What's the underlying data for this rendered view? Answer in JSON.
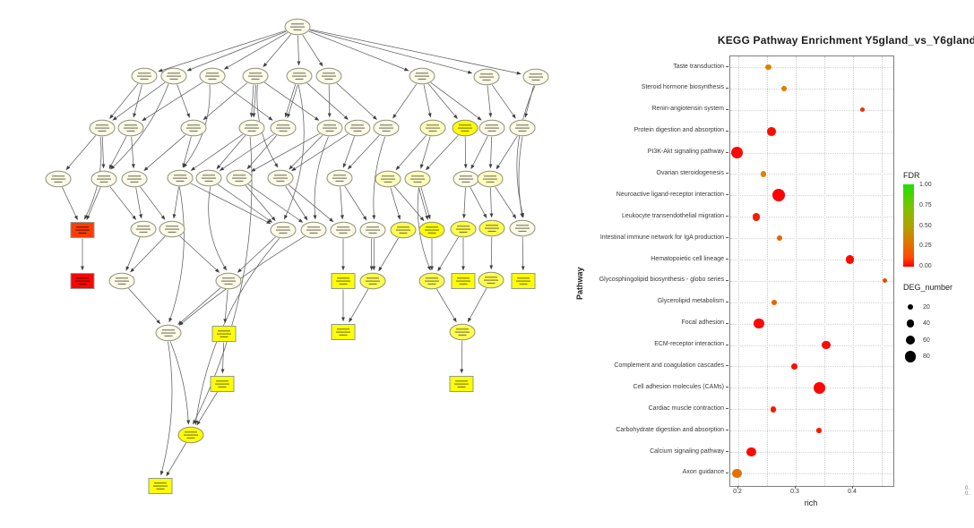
{
  "figure": {
    "left_panel_type": "GO-DAG topology graph",
    "right_panel_type": "KEGG enrichment bubble plot"
  },
  "chart_data": {
    "type": "scatter",
    "title": "KEGG Pathway Enrichment  Y5gland_vs_Y6gland",
    "xlabel": "rich",
    "ylabel": "Pathway",
    "xlim": [
      0.186,
      0.474
    ],
    "x_ticks": [
      0.2,
      0.3,
      0.4
    ],
    "x_minor_ticks": [
      0.25,
      0.35,
      0.45
    ],
    "grid": "dotted",
    "legend_position": "right",
    "points": [
      {
        "pathway": "Taste transduction",
        "rich": 0.253,
        "deg_number": 22,
        "fdr": 0.3
      },
      {
        "pathway": "Steroid hormone biosynthesis",
        "rich": 0.28,
        "deg_number": 12,
        "fdr": 0.28
      },
      {
        "pathway": "Renin-angiotensin system",
        "rich": 0.416,
        "deg_number": 8,
        "fdr": 0.1
      },
      {
        "pathway": "Protein digestion and absorption",
        "rich": 0.258,
        "deg_number": 48,
        "fdr": 0.03
      },
      {
        "pathway": "PI3K-Akt signaling pathway",
        "rich": 0.198,
        "deg_number": 82,
        "fdr": 0.01
      },
      {
        "pathway": "Ovarian steroidogenesis",
        "rich": 0.244,
        "deg_number": 16,
        "fdr": 0.3
      },
      {
        "pathway": "Neuroactive ligand-receptor interaction",
        "rich": 0.27,
        "deg_number": 88,
        "fdr": 0.005
      },
      {
        "pathway": "Leukocyte transendothelial migration",
        "rich": 0.231,
        "deg_number": 38,
        "fdr": 0.06
      },
      {
        "pathway": "Intestinal immune network for IgA production",
        "rich": 0.272,
        "deg_number": 12,
        "fdr": 0.22
      },
      {
        "pathway": "Hematopoietic cell lineage",
        "rich": 0.395,
        "deg_number": 44,
        "fdr": 0.02
      },
      {
        "pathway": "Glycosphingolipid biosynthesis - globo series",
        "rich": 0.455,
        "deg_number": 3,
        "fdr": 0.15
      },
      {
        "pathway": "Glycerolipid metabolism",
        "rich": 0.262,
        "deg_number": 14,
        "fdr": 0.22
      },
      {
        "pathway": "Focal adhesion",
        "rich": 0.236,
        "deg_number": 64,
        "fdr": 0.02
      },
      {
        "pathway": "ECM-receptor interaction",
        "rich": 0.353,
        "deg_number": 48,
        "fdr": 0.02
      },
      {
        "pathway": "Complement and coagulation cascades",
        "rich": 0.298,
        "deg_number": 28,
        "fdr": 0.03
      },
      {
        "pathway": "Cell adhesion molecules (CAMs)",
        "rich": 0.341,
        "deg_number": 76,
        "fdr": 0.01
      },
      {
        "pathway": "Cardiac muscle contraction",
        "rich": 0.261,
        "deg_number": 22,
        "fdr": 0.05
      },
      {
        "pathway": "Carbohydrate digestion and absorption",
        "rich": 0.341,
        "deg_number": 9,
        "fdr": 0.06
      },
      {
        "pathway": "Calcium signaling pathway",
        "rich": 0.223,
        "deg_number": 56,
        "fdr": 0.02
      },
      {
        "pathway": "Axon guidance",
        "rich": 0.198,
        "deg_number": 58,
        "fdr": 0.25
      }
    ]
  },
  "legend": {
    "fdr_title": "FDR",
    "fdr_ticks": [
      "1.00",
      "0.75",
      "0.50",
      "0.25",
      "0.00"
    ],
    "fdr_top_color": "#21df00",
    "fdr_bottom_color": "#ff0000",
    "deg_title": "DEG_number",
    "deg_sizes": [
      "20",
      "40",
      "60",
      "80"
    ]
  },
  "corner_fragment": "0.\n0.",
  "dag": {
    "tones": {
      "c": "#FBFBE8",
      "p": "#FFFFBF",
      "y": "#FFFF4F",
      "b": "#FFFF00",
      "o": "#FF3D00",
      "r": "#FF0500"
    },
    "edge_color": "#5f5f5f",
    "nodes": [
      [
        "r0",
        332,
        30,
        "e",
        "c"
      ],
      [
        "a1",
        161,
        85,
        "e",
        "c"
      ],
      [
        "a2",
        194,
        85,
        "e",
        "c"
      ],
      [
        "a3",
        237,
        85,
        "e",
        "c"
      ],
      [
        "a4",
        285,
        85,
        "e",
        "c"
      ],
      [
        "a5",
        334,
        85,
        "e",
        "c"
      ],
      [
        "a6",
        367,
        85,
        "e",
        "c"
      ],
      [
        "a7",
        471,
        85,
        "e",
        "c"
      ],
      [
        "a8",
        543,
        86,
        "e",
        "c"
      ],
      [
        "a9",
        598,
        86,
        "e",
        "c"
      ],
      [
        "b1",
        114,
        143,
        "e",
        "c"
      ],
      [
        "b2",
        146,
        143,
        "e",
        "c"
      ],
      [
        "b3",
        216,
        143,
        "e",
        "c"
      ],
      [
        "b4",
        281,
        143,
        "e",
        "c"
      ],
      [
        "b5",
        316,
        143,
        "e",
        "c"
      ],
      [
        "b6",
        368,
        143,
        "e",
        "c"
      ],
      [
        "b7",
        399,
        143,
        "e",
        "c"
      ],
      [
        "b8",
        431,
        143,
        "e",
        "c"
      ],
      [
        "b9",
        483,
        143,
        "e",
        "p"
      ],
      [
        "b10",
        519,
        143,
        "e",
        "b"
      ],
      [
        "b11",
        549,
        143,
        "e",
        "c"
      ],
      [
        "b12",
        583,
        143,
        "e",
        "c"
      ],
      [
        "c1",
        65,
        200,
        "e",
        "c"
      ],
      [
        "c2",
        116,
        200,
        "e",
        "c"
      ],
      [
        "c3",
        150,
        200,
        "e",
        "c"
      ],
      [
        "c4",
        201,
        199,
        "e",
        "c"
      ],
      [
        "c5",
        233,
        199,
        "e",
        "c"
      ],
      [
        "c6",
        267,
        199,
        "e",
        "c"
      ],
      [
        "c7",
        313,
        199,
        "e",
        "c"
      ],
      [
        "c8",
        379,
        199,
        "e",
        "c"
      ],
      [
        "c9",
        433,
        200,
        "e",
        "p"
      ],
      [
        "c10",
        466,
        200,
        "e",
        "p"
      ],
      [
        "c11",
        520,
        200,
        "e",
        "c"
      ],
      [
        "c12",
        547,
        200,
        "e",
        "p"
      ],
      [
        "R1",
        92,
        257,
        "r",
        "o"
      ],
      [
        "d1",
        160,
        256,
        "e",
        "c"
      ],
      [
        "d2",
        192,
        256,
        "e",
        "c"
      ],
      [
        "d3",
        316,
        257,
        "e",
        "c"
      ],
      [
        "d4",
        350,
        257,
        "e",
        "c"
      ],
      [
        "d5",
        383,
        257,
        "e",
        "c"
      ],
      [
        "d6",
        416,
        257,
        "e",
        "c"
      ],
      [
        "d7",
        450,
        257,
        "e",
        "y"
      ],
      [
        "d8",
        482,
        257,
        "e",
        "b"
      ],
      [
        "d9",
        517,
        256,
        "e",
        "y"
      ],
      [
        "d10",
        549,
        255,
        "e",
        "y"
      ],
      [
        "d11",
        583,
        255,
        "e",
        "c"
      ],
      [
        "R2",
        92,
        314,
        "r",
        "r"
      ],
      [
        "e1",
        136,
        314,
        "e",
        "c"
      ],
      [
        "e2",
        255,
        314,
        "e",
        "c"
      ],
      [
        "Y1",
        383,
        314,
        "r",
        "b"
      ],
      [
        "e3",
        416,
        314,
        "e",
        "y"
      ],
      [
        "e4",
        482,
        314,
        "e",
        "y"
      ],
      [
        "Y2",
        517,
        314,
        "r",
        "b"
      ],
      [
        "e5",
        548,
        313,
        "e",
        "y"
      ],
      [
        "Y3",
        584,
        314,
        "r",
        "b"
      ],
      [
        "f1",
        188,
        372,
        "e",
        "c"
      ],
      [
        "Y4",
        250,
        373,
        "r",
        "b"
      ],
      [
        "Y5",
        383,
        371,
        "r",
        "b"
      ],
      [
        "f2",
        516,
        371,
        "e",
        "y"
      ],
      [
        "Y6",
        248,
        429,
        "r",
        "b"
      ],
      [
        "Y7",
        515,
        429,
        "r",
        "b"
      ],
      [
        "g1",
        213,
        486,
        "e",
        "b"
      ],
      [
        "Y8",
        179,
        543,
        "r",
        "b"
      ]
    ],
    "edges": [
      [
        "r0",
        "a1"
      ],
      [
        "r0",
        "a2"
      ],
      [
        "r0",
        "a3"
      ],
      [
        "r0",
        "a4"
      ],
      [
        "r0",
        "a5"
      ],
      [
        "r0",
        "a6"
      ],
      [
        "r0",
        "a7"
      ],
      [
        "r0",
        "a8"
      ],
      [
        "r0",
        "a9"
      ],
      [
        "a1",
        "b1"
      ],
      [
        "a1",
        "b2"
      ],
      [
        "a2",
        "b1"
      ],
      [
        "a2",
        "b3"
      ],
      [
        "a2",
        "c2",
        -14
      ],
      [
        "a3",
        "b2"
      ],
      [
        "a3",
        "b5"
      ],
      [
        "a3",
        "c4",
        -18
      ],
      [
        "a4",
        "b3"
      ],
      [
        "a4",
        "b4",
        0,
        1
      ],
      [
        "a4",
        "b6"
      ],
      [
        "a4",
        "c7",
        16
      ],
      [
        "a5",
        "b5",
        0,
        1
      ],
      [
        "a5",
        "b7"
      ],
      [
        "a5",
        "d3",
        -26
      ],
      [
        "a6",
        "b6"
      ],
      [
        "a6",
        "b8"
      ],
      [
        "a7",
        "b8"
      ],
      [
        "a7",
        "b9"
      ],
      [
        "a7",
        "b10"
      ],
      [
        "a7",
        "b11"
      ],
      [
        "a8",
        "b11"
      ],
      [
        "a8",
        "b12"
      ],
      [
        "a9",
        "b12"
      ],
      [
        "a9",
        "d11",
        26
      ],
      [
        "b1",
        "c1"
      ],
      [
        "b1",
        "c2"
      ],
      [
        "b1",
        "R1",
        -14
      ],
      [
        "b2",
        "c2"
      ],
      [
        "b2",
        "c3"
      ],
      [
        "b3",
        "c3"
      ],
      [
        "b3",
        "c4"
      ],
      [
        "b4",
        "c4"
      ],
      [
        "b4",
        "c5"
      ],
      [
        "b4",
        "g1",
        -46
      ],
      [
        "b5",
        "c5"
      ],
      [
        "b5",
        "c6"
      ],
      [
        "b6",
        "c6"
      ],
      [
        "b6",
        "c7"
      ],
      [
        "b6",
        "d4",
        12
      ],
      [
        "b7",
        "c7"
      ],
      [
        "b7",
        "c8"
      ],
      [
        "b8",
        "c8"
      ],
      [
        "b8",
        "d6",
        10
      ],
      [
        "b9",
        "c9"
      ],
      [
        "b9",
        "c10"
      ],
      [
        "b10",
        "c10"
      ],
      [
        "b10",
        "c11"
      ],
      [
        "b11",
        "c11"
      ],
      [
        "b11",
        "c12"
      ],
      [
        "b12",
        "c12"
      ],
      [
        "b12",
        "d11",
        8
      ],
      [
        "c1",
        "R1"
      ],
      [
        "c2",
        "R1"
      ],
      [
        "c2",
        "d1"
      ],
      [
        "c3",
        "d1"
      ],
      [
        "c3",
        "d2"
      ],
      [
        "c4",
        "d2"
      ],
      [
        "c4",
        "d3"
      ],
      [
        "c4",
        "f1",
        -20
      ],
      [
        "c5",
        "d3"
      ],
      [
        "c5",
        "e2",
        18
      ],
      [
        "c6",
        "d3"
      ],
      [
        "c6",
        "d4"
      ],
      [
        "c7",
        "d4"
      ],
      [
        "c7",
        "d5"
      ],
      [
        "c8",
        "d5"
      ],
      [
        "c8",
        "d6"
      ],
      [
        "c9",
        "d7"
      ],
      [
        "c9",
        "d8"
      ],
      [
        "c10",
        "d8",
        0,
        1
      ],
      [
        "c10",
        "e4",
        12
      ],
      [
        "c11",
        "d9"
      ],
      [
        "c11",
        "d10"
      ],
      [
        "c12",
        "d10"
      ],
      [
        "c12",
        "d11"
      ],
      [
        "R1",
        "R2"
      ],
      [
        "d1",
        "e1"
      ],
      [
        "d2",
        "e1"
      ],
      [
        "d2",
        "e2"
      ],
      [
        "d3",
        "e2"
      ],
      [
        "d5",
        "Y1"
      ],
      [
        "d6",
        "e3",
        0,
        1
      ],
      [
        "d7",
        "e3"
      ],
      [
        "d8",
        "e4"
      ],
      [
        "d9",
        "e4"
      ],
      [
        "d9",
        "Y2"
      ],
      [
        "d10",
        "e5"
      ],
      [
        "d11",
        "Y3"
      ],
      [
        "d3",
        "g1",
        34
      ],
      [
        "d4",
        "f1",
        6
      ],
      [
        "e1",
        "f1"
      ],
      [
        "e2",
        "f1"
      ],
      [
        "e2",
        "Y4"
      ],
      [
        "Y1",
        "Y5"
      ],
      [
        "e3",
        "Y5"
      ],
      [
        "e4",
        "f2"
      ],
      [
        "e5",
        "f2"
      ],
      [
        "Y4",
        "Y6"
      ],
      [
        "f1",
        "g1",
        -8
      ],
      [
        "f1",
        "Y8",
        -16
      ],
      [
        "Y6",
        "g1"
      ],
      [
        "g1",
        "Y8"
      ],
      [
        "f2",
        "Y7"
      ]
    ]
  }
}
